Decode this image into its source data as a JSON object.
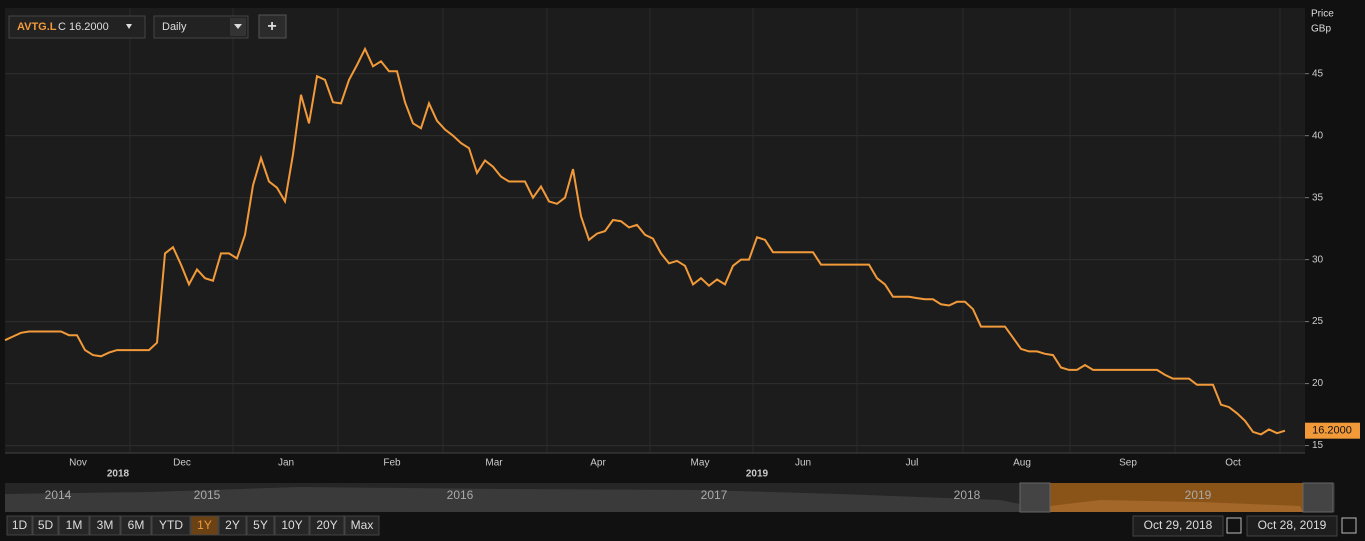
{
  "toolbar": {
    "ticker": "AVTG.L",
    "close": "C 16.2000",
    "interval": "Daily",
    "add": "+"
  },
  "chart_data": {
    "type": "line",
    "axis_title": [
      "Price",
      "GBp"
    ],
    "series": [
      {
        "name": "AVTG.L",
        "color": "#f29a3a",
        "values": [
          23.5,
          23.8,
          24.1,
          24.2,
          24.2,
          24.2,
          24.2,
          24.2,
          23.9,
          23.9,
          22.7,
          22.3,
          22.2,
          22.5,
          22.7,
          22.7,
          22.7,
          22.7,
          22.7,
          23.3,
          30.5,
          31.0,
          29.6,
          28.0,
          29.2,
          28.5,
          28.3,
          30.5,
          30.5,
          30.1,
          32.0,
          36.0,
          38.2,
          36.3,
          35.8,
          34.7,
          38.5,
          43.3,
          41.0,
          44.8,
          44.5,
          42.7,
          42.6,
          44.5,
          45.7,
          47.0,
          45.6,
          46.0,
          45.2,
          45.2,
          42.7,
          41.0,
          40.6,
          42.6,
          41.2,
          40.5,
          40.0,
          39.4,
          39.0,
          37.0,
          38.0,
          37.5,
          36.7,
          36.3,
          36.3,
          36.3,
          35.0,
          35.9,
          34.7,
          34.5,
          35.0,
          37.3,
          33.5,
          31.6,
          32.1,
          32.3,
          33.2,
          33.1,
          32.6,
          32.8,
          32.0,
          31.7,
          30.5,
          29.7,
          29.9,
          29.5,
          28.0,
          28.5,
          27.9,
          28.4,
          28.0,
          29.5,
          30.0,
          30.0,
          31.8,
          31.6,
          30.6,
          30.6,
          30.6,
          30.6,
          30.6,
          30.6,
          29.6,
          29.6,
          29.6,
          29.6,
          29.6,
          29.6,
          29.6,
          28.5,
          28.0,
          27.0,
          27.0,
          27.0,
          26.9,
          26.8,
          26.8,
          26.4,
          26.3,
          26.6,
          26.6,
          26.0,
          24.6,
          24.6,
          24.6,
          24.6,
          23.7,
          22.8,
          22.6,
          22.6,
          22.4,
          22.3,
          21.3,
          21.1,
          21.1,
          21.5,
          21.1,
          21.1,
          21.1,
          21.1,
          21.1,
          21.1,
          21.1,
          21.1,
          21.1,
          20.7,
          20.4,
          20.4,
          20.4,
          19.9,
          19.9,
          19.9,
          18.3,
          18.1,
          17.6,
          17.0,
          16.1,
          15.9,
          16.3,
          16.0,
          16.2
        ]
      }
    ],
    "last_label": "16.2000",
    "ylim": [
      14.4,
      50.3
    ],
    "yticks": [
      15,
      20,
      25,
      30,
      35,
      40,
      45
    ],
    "grid": true,
    "x_labels": [
      "Nov",
      "Dec",
      "Jan",
      "Feb",
      "Mar",
      "Apr",
      "May",
      "Jun",
      "Jul",
      "Aug",
      "Sep",
      "Oct"
    ],
    "year_labels": [
      "2018",
      "2019"
    ]
  },
  "navigator": {
    "years": [
      "2014",
      "2015",
      "2016",
      "2017",
      "2018",
      "2019"
    ]
  },
  "ranges": {
    "buttons": [
      "1D",
      "5D",
      "1M",
      "3M",
      "6M",
      "YTD",
      "1Y",
      "2Y",
      "5Y",
      "10Y",
      "20Y",
      "Max"
    ],
    "active": 6
  },
  "dates": {
    "from": "Oct 29, 2018",
    "to": "Oct 28, 2019"
  }
}
